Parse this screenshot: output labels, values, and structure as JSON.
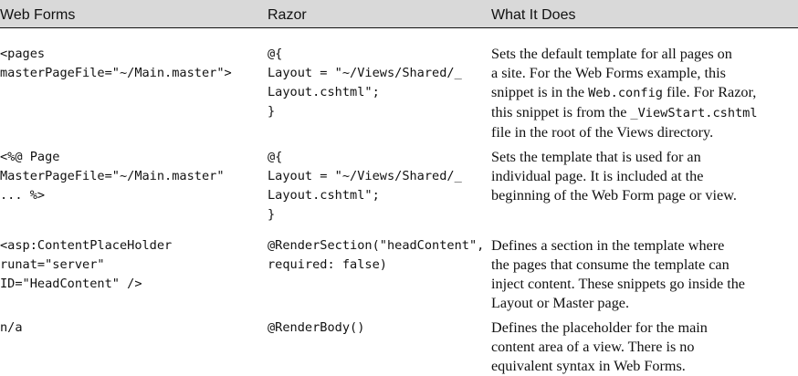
{
  "headers": [
    "Web Forms",
    "Razor",
    "What It Does"
  ],
  "rows": [
    {
      "webforms": [
        "<pages",
        "masterPageFile=\"~/Main.master\">"
      ],
      "razor": [
        "@{",
        "Layout = \"~/Views/Shared/_",
        "Layout.cshtml\";",
        "}"
      ],
      "desc": [
        "Sets the default template for all pages on",
        "a site. For the Web Forms example, this",
        "snippet is in the ",
        "Web.config",
        " file. For Razor,",
        "this snippet is from the ",
        "_ViewStart.cshtml",
        "file in the root of the Views directory."
      ]
    },
    {
      "webforms": [
        "<%@ Page",
        "MasterPageFile=\"~/Main.master\"",
        "... %>"
      ],
      "razor": [
        "@{",
        "Layout = \"~/Views/Shared/_",
        "Layout.cshtml\";",
        "}"
      ],
      "desc": [
        "Sets the template that is used for an",
        "individual page. It is included at the",
        "beginning of the Web Form page or view."
      ]
    },
    {
      "webforms": [
        "<asp:ContentPlaceHolder",
        "runat=\"server\"",
        "ID=\"HeadContent\" />"
      ],
      "razor": [
        "@RenderSection(\"headContent\",",
        "required: false)"
      ],
      "desc": [
        "Defines a section in the template where",
        "the pages that consume the template can",
        "inject content. These snippets go inside the",
        "Layout or Master page."
      ]
    },
    {
      "webforms": [
        "n/a"
      ],
      "razor": [
        "@RenderBody()"
      ],
      "desc": [
        "Defines the placeholder for the main",
        "content area of a view. There is no",
        "equivalent syntax in Web Forms."
      ]
    }
  ]
}
